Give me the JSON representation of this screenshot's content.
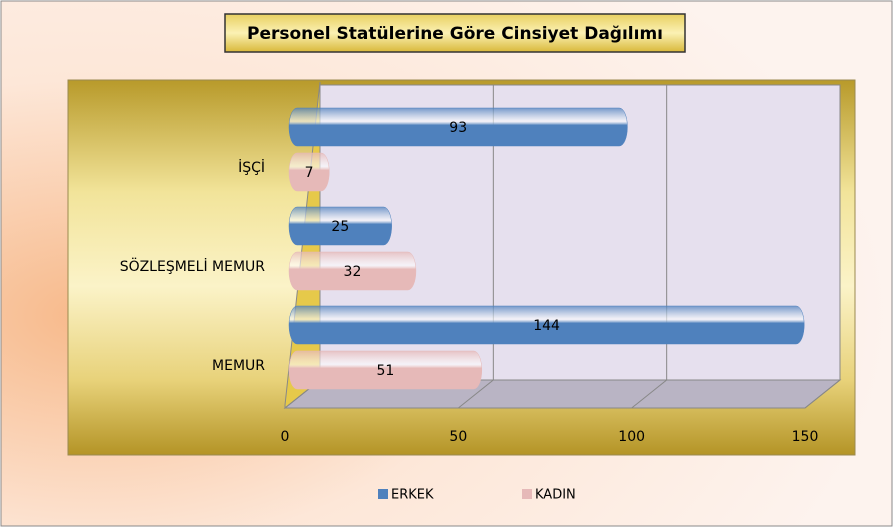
{
  "chart_data": {
    "type": "bar",
    "orientation": "horizontal",
    "title": "Personel Statülerine Göre Cinsiyet Dağılımı",
    "categories": [
      "İŞÇİ",
      "SÖZLEŞMELİ MEMUR",
      "MEMUR"
    ],
    "series": [
      {
        "name": "ERKEK",
        "color": "#4f81bd",
        "values": [
          93,
          25,
          144
        ]
      },
      {
        "name": "KADIN",
        "color": "#e6b9b8",
        "values": [
          7,
          32,
          51
        ]
      }
    ],
    "xlim": [
      0,
      150
    ],
    "xticks": [
      0,
      50,
      100,
      150
    ],
    "grid": true,
    "legend": "bottom"
  }
}
